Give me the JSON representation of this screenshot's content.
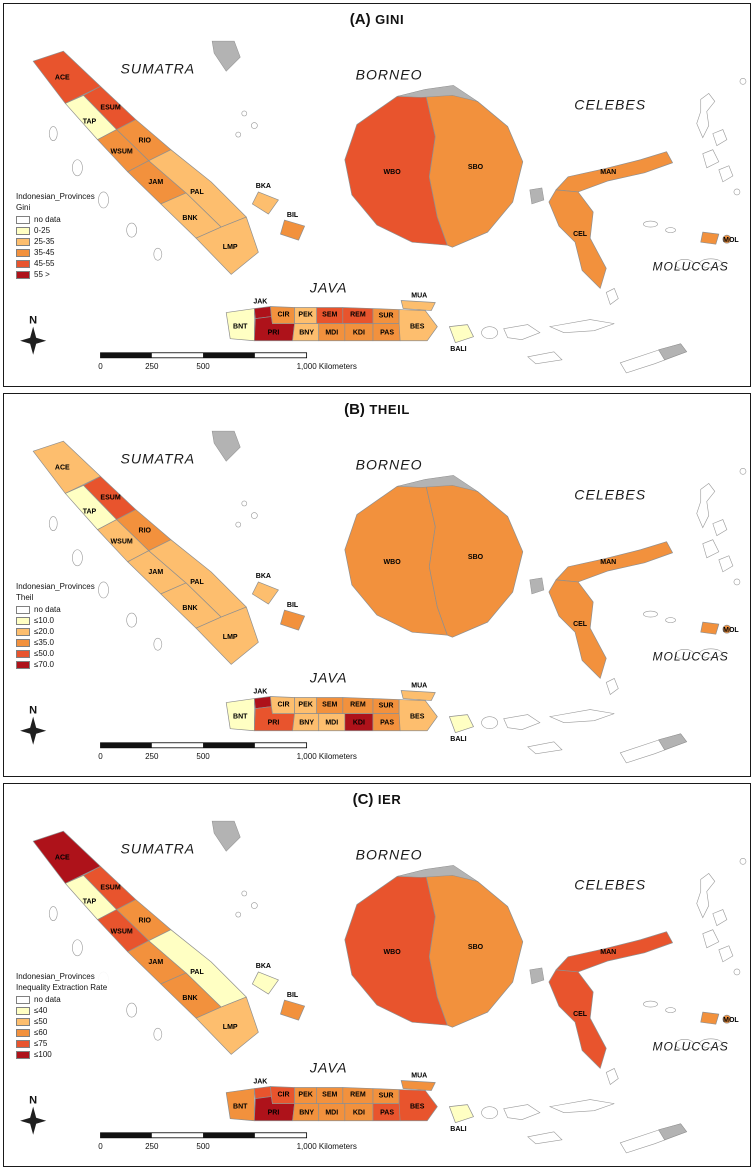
{
  "map": {
    "compass_label": "N",
    "scale_labels": [
      "0",
      "250",
      "500",
      "1,000 Kilometers"
    ],
    "region_labels": {
      "sumatra": "SUMATRA",
      "borneo": "BORNEO",
      "celebes": "CELEBES",
      "java": "JAVA",
      "moluccas": "MOLUCCAS"
    },
    "province_labels": {
      "ACE": "ACE",
      "TAP": "TAP",
      "ESUM": "ESUM",
      "WSUM": "WSUM",
      "RIO": "RIO",
      "JAM": "JAM",
      "PAL": "PAL",
      "BNK": "BNK",
      "LMP": "LMP",
      "BKA": "BKA",
      "BIL": "BIL",
      "BNT": "BNT",
      "JAK": "JAK",
      "PRI": "PRI",
      "CIR": "CIR",
      "PEK": "PEK",
      "SEM": "SEM",
      "REM": "REM",
      "SUR": "SUR",
      "MUA": "MUA",
      "BNY": "BNY",
      "MDI": "MDI",
      "KDI": "KDI",
      "PAS": "PAS",
      "BES": "BES",
      "BALI": "BALI",
      "WBO": "WBO",
      "SBO": "SBO",
      "MAN": "MAN",
      "CEL": "CEL",
      "MOL": "MOL"
    }
  },
  "panels": [
    {
      "id": "A",
      "title_prefix": "(A)",
      "title": "GINI",
      "legend": {
        "layer_title": "Indonesian_Provinces",
        "measure": "Gini",
        "classes": [
          {
            "label": "no data",
            "color": "#FFFFFF"
          },
          {
            "label": "0-25",
            "color": "#FFFFC3"
          },
          {
            "label": "25-35",
            "color": "#FDBE6E"
          },
          {
            "label": "35-45",
            "color": "#F2913D"
          },
          {
            "label": "45-55",
            "color": "#E8542D"
          },
          {
            "label": "55 >",
            "color": "#AE121A"
          }
        ]
      },
      "province_classes": {
        "ACE": 4,
        "TAP": 1,
        "ESUM": 4,
        "WSUM": 3,
        "RIO": 3,
        "JAM": 3,
        "PAL": 2,
        "BNK": 2,
        "LMP": 2,
        "BKA": 2,
        "BIL": 3,
        "BNT": 1,
        "JAK": 5,
        "PRI": 5,
        "CIR": 3,
        "PEK": 2,
        "SEM": 4,
        "REM": 4,
        "SUR": 3,
        "MUA": 2,
        "BNY": 2,
        "MDI": 3,
        "KDI": 3,
        "PAS": 3,
        "BES": 2,
        "BALI": 1,
        "WBO": 4,
        "SBO": 3,
        "MAN": 3,
        "CEL": 3,
        "MOL": 3
      }
    },
    {
      "id": "B",
      "title_prefix": "(B)",
      "title": "THEIL",
      "legend": {
        "layer_title": "Indonesian_Provinces",
        "measure": "Theil",
        "classes": [
          {
            "label": "no data",
            "color": "#FFFFFF"
          },
          {
            "label": "≤10.0",
            "color": "#FFFFC3"
          },
          {
            "label": "≤20.0",
            "color": "#FDBE6E"
          },
          {
            "label": "≤35.0",
            "color": "#F2913D"
          },
          {
            "label": "≤50.0",
            "color": "#E8542D"
          },
          {
            "label": "≤70.0",
            "color": "#AE121A"
          }
        ]
      },
      "province_classes": {
        "ACE": 2,
        "TAP": 1,
        "ESUM": 4,
        "WSUM": 2,
        "RIO": 3,
        "JAM": 2,
        "PAL": 2,
        "BNK": 2,
        "LMP": 2,
        "BKA": 2,
        "BIL": 3,
        "BNT": 1,
        "JAK": 5,
        "PRI": 4,
        "CIR": 2,
        "PEK": 2,
        "SEM": 3,
        "REM": 3,
        "SUR": 3,
        "MUA": 2,
        "BNY": 2,
        "MDI": 2,
        "KDI": 5,
        "PAS": 3,
        "BES": 2,
        "BALI": 1,
        "WBO": 3,
        "SBO": 3,
        "MAN": 3,
        "CEL": 3,
        "MOL": 3
      }
    },
    {
      "id": "C",
      "title_prefix": "(C)",
      "title": "IER",
      "legend": {
        "layer_title": "Indonesian_Provinces",
        "measure": "Inequality Extraction Rate",
        "classes": [
          {
            "label": "no data",
            "color": "#FFFFFF"
          },
          {
            "label": "≤40",
            "color": "#FFFFC3"
          },
          {
            "label": "≤50",
            "color": "#FDBE6E"
          },
          {
            "label": "≤60",
            "color": "#F2913D"
          },
          {
            "label": "≤75",
            "color": "#E8542D"
          },
          {
            "label": "≤100",
            "color": "#AE121A"
          }
        ]
      },
      "province_classes": {
        "ACE": 5,
        "TAP": 1,
        "ESUM": 4,
        "WSUM": 4,
        "RIO": 3,
        "JAM": 3,
        "PAL": 1,
        "BNK": 3,
        "LMP": 2,
        "BKA": 1,
        "BIL": 3,
        "BNT": 3,
        "JAK": 4,
        "PRI": 5,
        "CIR": 4,
        "PEK": 3,
        "SEM": 3,
        "REM": 3,
        "SUR": 3,
        "MUA": 3,
        "BNY": 3,
        "MDI": 3,
        "KDI": 3,
        "PAS": 4,
        "BES": 4,
        "BALI": 1,
        "WBO": 4,
        "SBO": 3,
        "MAN": 4,
        "CEL": 4,
        "MOL": 3
      }
    }
  ]
}
